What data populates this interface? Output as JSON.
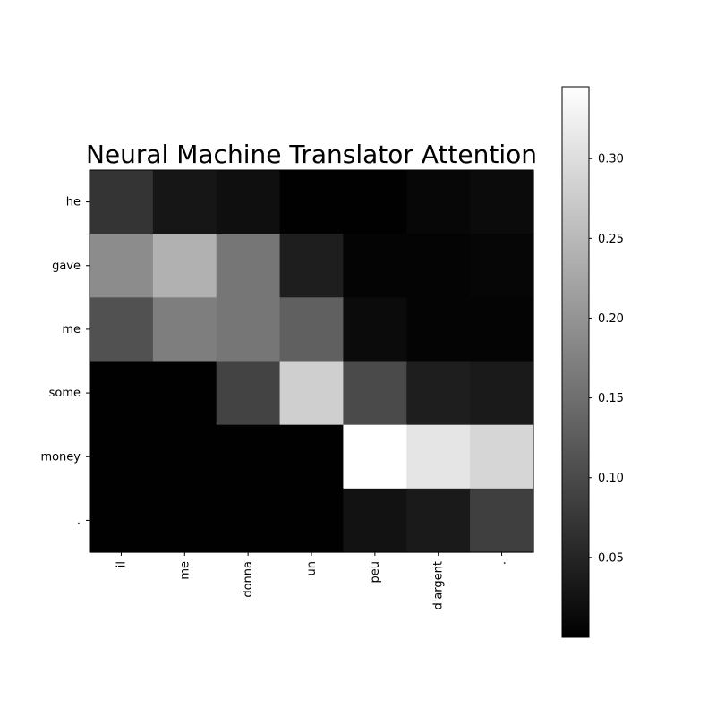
{
  "chart_data": {
    "type": "heatmap",
    "title": "Neural Machine Translator Attention",
    "rows": [
      "he",
      "gave",
      "me",
      "some",
      "money",
      "."
    ],
    "columns": [
      "il",
      "me",
      "donna",
      "un",
      "peu",
      "d'argent",
      "."
    ],
    "values": [
      [
        0.07,
        0.03,
        0.02,
        0.001,
        0.001,
        0.01,
        0.015
      ],
      [
        0.19,
        0.24,
        0.16,
        0.04,
        0.005,
        0.005,
        0.008
      ],
      [
        0.11,
        0.17,
        0.16,
        0.13,
        0.015,
        0.005,
        0.005
      ],
      [
        0.001,
        0.001,
        0.09,
        0.28,
        0.1,
        0.04,
        0.035
      ],
      [
        0.001,
        0.001,
        0.001,
        0.001,
        0.345,
        0.31,
        0.29
      ],
      [
        0.001,
        0.001,
        0.001,
        0.001,
        0.025,
        0.035,
        0.085
      ]
    ],
    "colormap": "gray",
    "colorbar": {
      "min": 0.0,
      "max": 0.345,
      "ticks": [
        0.05,
        0.1,
        0.15,
        0.2,
        0.25,
        0.3
      ],
      "tick_labels": [
        "0.05",
        "0.10",
        "0.15",
        "0.20",
        "0.25",
        "0.30"
      ]
    },
    "xtick_rotation": "vertical",
    "grid": false
  }
}
